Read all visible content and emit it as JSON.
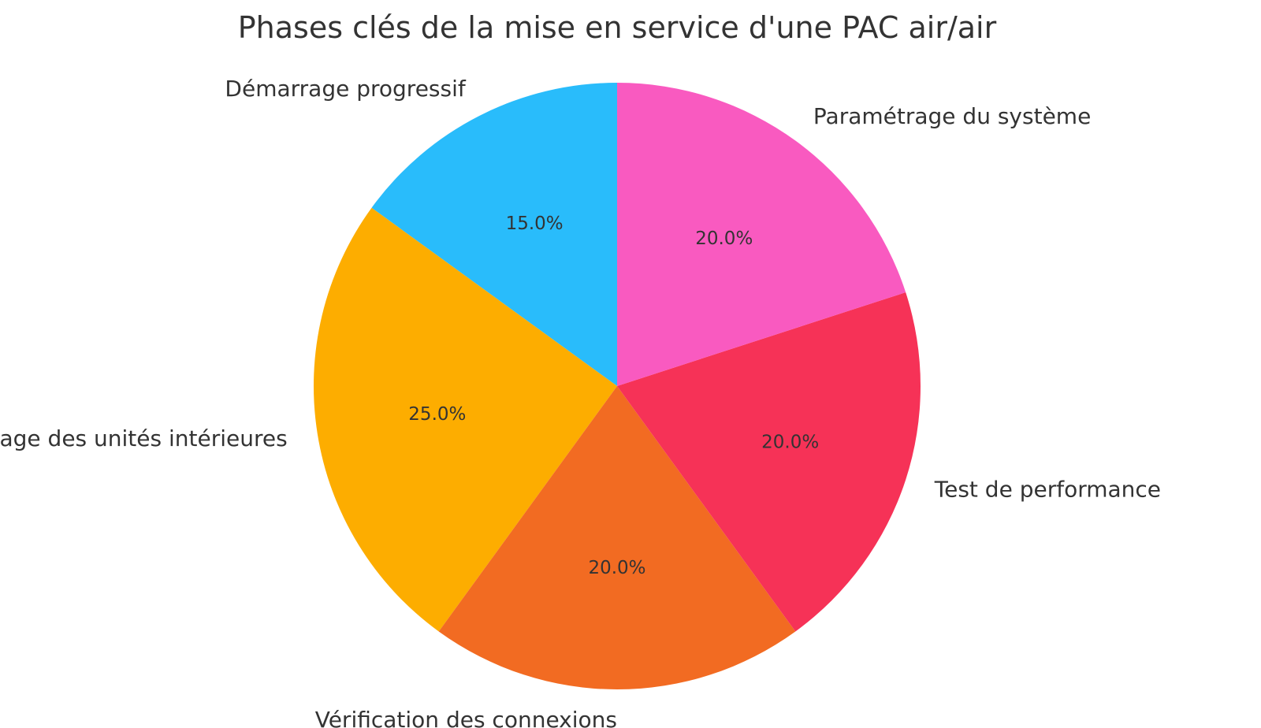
{
  "chart_data": {
    "type": "pie",
    "title": "Phases clés de la mise en service d'une PAC air/air",
    "slices": [
      {
        "label": "Démarrage progressif",
        "value": 15.0,
        "pct_label": "15.0%",
        "color": "#29BCFB"
      },
      {
        "label": "Réglage des unités intérieures",
        "value": 25.0,
        "pct_label": "25.0%",
        "color": "#FDAD00"
      },
      {
        "label": "Vérification des connexions",
        "value": 20.0,
        "pct_label": "20.0%",
        "color": "#F26B22"
      },
      {
        "label": "Test de performance",
        "value": 20.0,
        "pct_label": "20.0%",
        "color": "#F63257"
      },
      {
        "label": "Paramétrage du système",
        "value": 20.0,
        "pct_label": "20.0%",
        "color": "#F95AC0"
      }
    ],
    "start_angle_deg": 90,
    "direction": "counterclockwise",
    "legend": "none"
  }
}
